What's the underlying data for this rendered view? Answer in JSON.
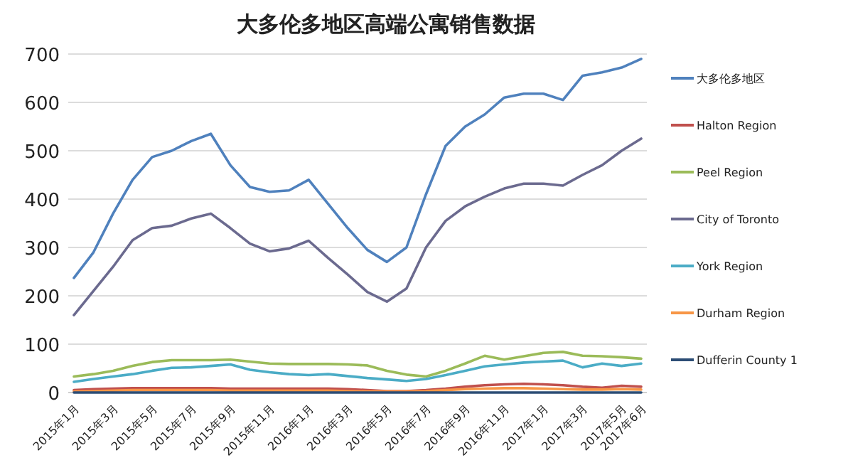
{
  "chart_data": {
    "type": "line",
    "title": "大多伦多地区高端公寓销售数据",
    "categories": [
      "2015年1月",
      null,
      "2015年3月",
      null,
      "2015年5月",
      null,
      "2015年7月",
      null,
      "2015年9月",
      null,
      "2015年11月",
      null,
      "2016年1月",
      null,
      "2016年3月",
      null,
      "2016年5月",
      null,
      "2016年7月",
      null,
      "2016年9月",
      null,
      "2016年11月",
      null,
      "2017年1月",
      null,
      "2017年3月",
      null,
      "2017年5月",
      "2017年6月"
    ],
    "series": [
      {
        "name": "大多伦多地区",
        "color": "#4f81bd",
        "values": [
          237,
          290,
          370,
          440,
          487,
          500,
          520,
          535,
          470,
          425,
          415,
          418,
          440,
          390,
          340,
          295,
          270,
          300,
          410,
          510,
          550,
          575,
          610,
          618,
          618,
          605,
          655,
          662,
          672,
          690
        ]
      },
      {
        "name": "Halton Region",
        "color": "#c0504d",
        "values": [
          5,
          7,
          8,
          9,
          9,
          9,
          9,
          9,
          8,
          8,
          8,
          8,
          8,
          8,
          7,
          5,
          3,
          3,
          5,
          8,
          12,
          15,
          17,
          18,
          17,
          15,
          12,
          10,
          14,
          12
        ]
      },
      {
        "name": "Peel Region",
        "color": "#9bbb59",
        "values": [
          33,
          38,
          45,
          55,
          63,
          67,
          67,
          67,
          68,
          64,
          60,
          59,
          59,
          59,
          58,
          56,
          45,
          37,
          33,
          45,
          60,
          76,
          68,
          75,
          82,
          84,
          76,
          75,
          73,
          70
        ]
      },
      {
        "name": "City of Toronto",
        "color": "#6b6a8f",
        "values": [
          160,
          210,
          260,
          315,
          340,
          345,
          360,
          370,
          340,
          308,
          292,
          298,
          314,
          278,
          244,
          208,
          188,
          215,
          300,
          355,
          385,
          405,
          422,
          432,
          432,
          428,
          450,
          470,
          500,
          525
        ]
      },
      {
        "name": "York Region",
        "color": "#4bacc6",
        "values": [
          22,
          28,
          33,
          38,
          45,
          51,
          52,
          55,
          58,
          47,
          42,
          38,
          36,
          38,
          34,
          30,
          27,
          24,
          28,
          36,
          45,
          54,
          58,
          62,
          64,
          66,
          52,
          60,
          55,
          60
        ]
      },
      {
        "name": "Durham Region",
        "color": "#f79646",
        "values": [
          2,
          3,
          4,
          5,
          5,
          5,
          5,
          5,
          4,
          4,
          4,
          4,
          4,
          4,
          3,
          2,
          2,
          2,
          3,
          5,
          7,
          8,
          9,
          9,
          8,
          7,
          6,
          6,
          7,
          6
        ]
      },
      {
        "name": "Dufferin County 1",
        "color": "#2c4d75",
        "values": [
          0,
          0,
          0,
          0,
          0,
          0,
          0,
          0,
          0,
          0,
          0,
          0,
          0,
          0,
          0,
          0,
          0,
          0,
          0,
          0,
          0,
          0,
          0,
          0,
          0,
          0,
          0,
          0,
          0,
          0
        ]
      }
    ],
    "ylim": [
      0,
      700
    ],
    "yticks": [
      0,
      100,
      200,
      300,
      400,
      500,
      600,
      700
    ],
    "grid": "y",
    "legend": "right",
    "marker": "none",
    "line_style": "solid"
  }
}
